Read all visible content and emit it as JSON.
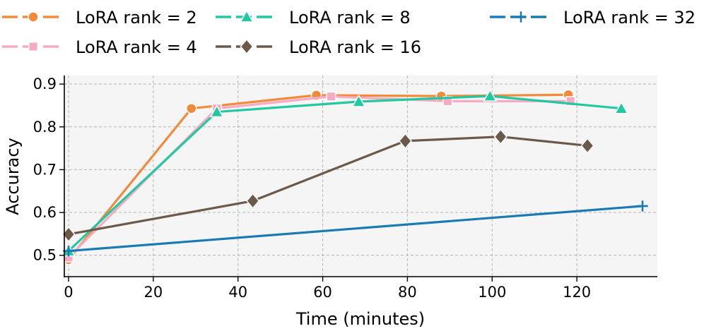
{
  "chart_data": {
    "type": "line",
    "title": "",
    "xlabel": "Time (minutes)",
    "ylabel": "Accuracy",
    "xlim": [
      -1,
      139
    ],
    "ylim": [
      0.45,
      0.92
    ],
    "xticks": [
      0,
      20,
      40,
      60,
      80,
      100,
      120
    ],
    "yticks": [
      0.5,
      0.6,
      0.7,
      0.8,
      0.9
    ],
    "grid": true,
    "legend_position": "top",
    "series": [
      {
        "name": "LoRA rank = 2",
        "color": "#f28a3c",
        "marker": "circle",
        "x": [
          0,
          29,
          58.5,
          88,
          118
        ],
        "y": [
          0.49,
          0.843,
          0.874,
          0.872,
          0.875
        ]
      },
      {
        "name": "LoRA rank = 4",
        "color": "#f7aac4",
        "marker": "square",
        "x": [
          0,
          35,
          62,
          89.5,
          118.5
        ],
        "y": [
          0.495,
          0.843,
          0.871,
          0.86,
          0.86
        ]
      },
      {
        "name": "LoRA rank = 8",
        "color": "#22c9a0",
        "marker": "triangle",
        "x": [
          0,
          35,
          68.5,
          99.5,
          130.5
        ],
        "y": [
          0.51,
          0.835,
          0.859,
          0.872,
          0.843
        ]
      },
      {
        "name": "LoRA rank = 16",
        "color": "#6b5a4a",
        "marker": "diamond",
        "x": [
          0,
          43.5,
          79.5,
          102,
          122.5
        ],
        "y": [
          0.549,
          0.627,
          0.767,
          0.777,
          0.756
        ]
      },
      {
        "name": "LoRA rank = 32",
        "color": "#1a7bb3",
        "marker": "plus",
        "x": [
          0,
          135.5
        ],
        "y": [
          0.51,
          0.615
        ]
      }
    ]
  }
}
